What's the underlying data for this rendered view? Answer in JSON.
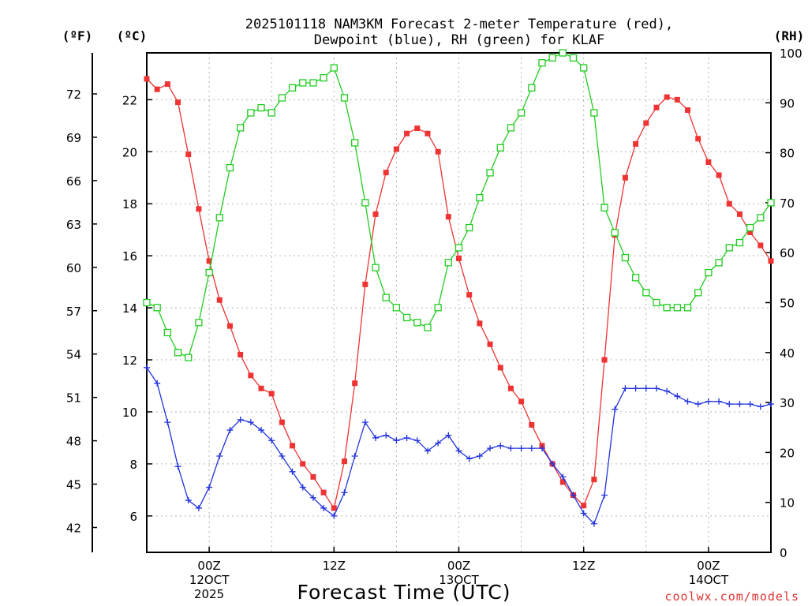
{
  "title_line1": "2025101118 NAM3KM Forecast 2-meter Temperature (red),",
  "title_line2": "Dewpoint (blue), RH (green) for KLAF",
  "unit_f": "(ºF)",
  "unit_c": "(ºC)",
  "unit_rh": "(RH)",
  "credit": "coolwx.com/models",
  "chart_data": {
    "type": "line",
    "title": "2025101118 NAM3KM Forecast 2-meter Temperature (red), Dewpoint (blue), RH (green) for KLAF",
    "xlabel": "Forecast Time (UTC)",
    "x_hours_from_start": {
      "start": 0,
      "end": 60,
      "step": 1
    },
    "x_ticks": [
      {
        "hour": 6,
        "label": "00Z",
        "sub1": "12OCT",
        "sub2": "2025"
      },
      {
        "hour": 18,
        "label": "12Z",
        "sub1": "",
        "sub2": ""
      },
      {
        "hour": 30,
        "label": "00Z",
        "sub1": "13OCT",
        "sub2": ""
      },
      {
        "hour": 42,
        "label": "12Z",
        "sub1": "",
        "sub2": ""
      },
      {
        "hour": 54,
        "label": "00Z",
        "sub1": "14OCT",
        "sub2": ""
      }
    ],
    "ylim_c": [
      4.6,
      23.8
    ],
    "yticks_c": [
      6,
      8,
      10,
      12,
      14,
      16,
      18,
      20,
      22
    ],
    "yticks_f": [
      42,
      45,
      48,
      51,
      54,
      57,
      60,
      63,
      66,
      69,
      72
    ],
    "ylim_rh": [
      0,
      100
    ],
    "yticks_rh": [
      0,
      10,
      20,
      30,
      40,
      50,
      60,
      70,
      80,
      90,
      100
    ],
    "grid": true,
    "series": [
      {
        "name": "Temperature",
        "axis": "c",
        "color": "#ee3333",
        "marker": "filled-square",
        "values": [
          22.8,
          22.4,
          22.6,
          21.9,
          19.9,
          17.8,
          15.8,
          14.3,
          13.3,
          12.2,
          11.4,
          10.9,
          10.7,
          9.6,
          8.7,
          8.0,
          7.5,
          6.9,
          6.3,
          8.1,
          11.1,
          14.9,
          17.6,
          19.2,
          20.1,
          20.7,
          20.9,
          20.7,
          20.0,
          17.5,
          15.9,
          14.5,
          13.4,
          12.6,
          11.7,
          10.9,
          10.4,
          9.5,
          8.7,
          8.0,
          7.3,
          6.8,
          6.4,
          7.4,
          12.0,
          16.8,
          19.0,
          20.3,
          21.1,
          21.7,
          22.1,
          22.0,
          21.6,
          20.5,
          19.6,
          19.1,
          18.0,
          17.6,
          16.9,
          16.4,
          15.8
        ]
      },
      {
        "name": "Dewpoint",
        "axis": "c",
        "color": "#2233dd",
        "marker": "plus",
        "values": [
          11.7,
          11.1,
          9.6,
          7.9,
          6.6,
          6.3,
          7.1,
          8.3,
          9.3,
          9.7,
          9.6,
          9.3,
          8.9,
          8.3,
          7.7,
          7.1,
          6.7,
          6.3,
          6.0,
          6.9,
          8.3,
          9.6,
          9.0,
          9.1,
          8.9,
          9.0,
          8.9,
          8.5,
          8.8,
          9.1,
          8.5,
          8.2,
          8.3,
          8.6,
          8.7,
          8.6,
          8.6,
          8.6,
          8.6,
          8.0,
          7.5,
          6.8,
          6.1,
          5.7,
          6.8,
          10.1,
          10.9,
          10.9,
          10.9,
          10.9,
          10.8,
          10.6,
          10.4,
          10.3,
          10.4,
          10.4,
          10.3,
          10.3,
          10.3,
          10.2,
          10.3
        ]
      },
      {
        "name": "RH",
        "axis": "rh",
        "color": "#22cc22",
        "marker": "open-square",
        "values": [
          50,
          49,
          44,
          40,
          39,
          46,
          56,
          67,
          77,
          85,
          88,
          89,
          88,
          91,
          93,
          94,
          94,
          95,
          97,
          91,
          82,
          70,
          57,
          51,
          49,
          47,
          46,
          45,
          49,
          58,
          61,
          65,
          71,
          76,
          81,
          85,
          88,
          93,
          98,
          99,
          100,
          99,
          97,
          88,
          69,
          64,
          59,
          55,
          52,
          50,
          49,
          49,
          49,
          52,
          56,
          58,
          61,
          62,
          65,
          67,
          70
        ]
      }
    ]
  }
}
